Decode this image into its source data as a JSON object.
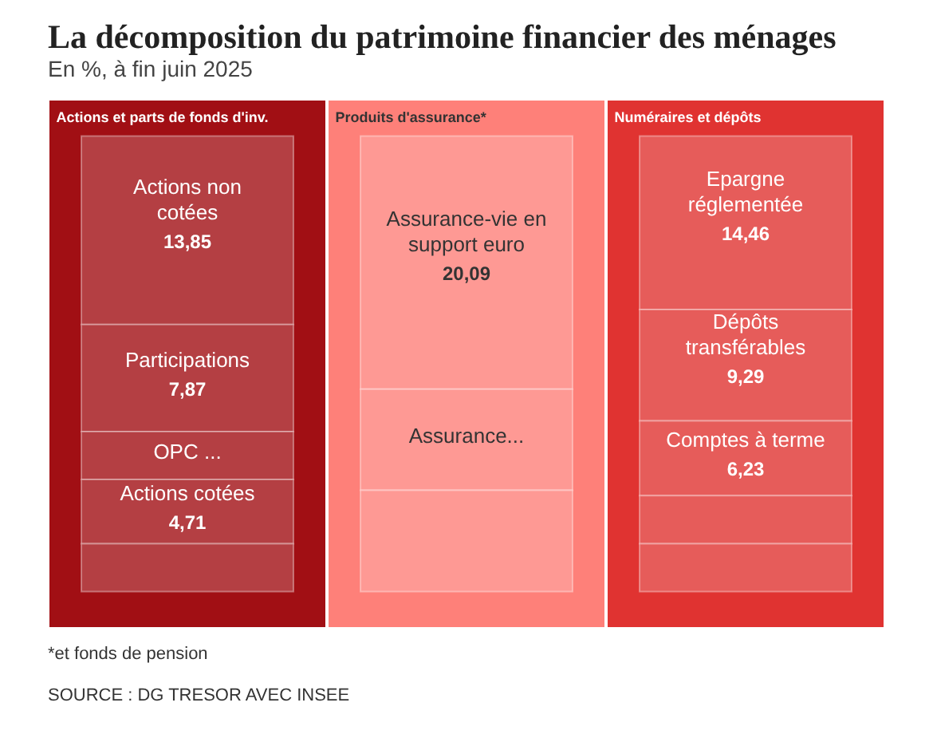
{
  "chart_data": {
    "type": "other",
    "title": "La décomposition du patrimoine financier des ménages",
    "subtitle": "En %, à fin juin 2025",
    "categories": [
      "Actions non cotées",
      "Participations",
      "OPC ...",
      "Actions cotées",
      null,
      "Assurance-vie en support euro",
      "Assurance...",
      null,
      "Epargne réglementée",
      "Dépôts transférables",
      "Comptes à terme",
      null,
      null
    ],
    "series": [
      {
        "name": "Actions et parts de fonds d'inv.",
        "color": "#b43f43",
        "values": [
          13.85,
          7.87,
          null,
          4.71,
          null,
          null,
          null,
          null,
          null,
          null,
          null,
          null,
          null
        ],
        "value_labels": [
          "13,85",
          "7,87",
          null,
          "4,71",
          null,
          null,
          null,
          null,
          null,
          null,
          null,
          null,
          null
        ]
      },
      {
        "name": "Produits d'assurance*",
        "color": "#fe9994",
        "values": [
          null,
          null,
          null,
          null,
          null,
          20.09,
          null,
          null,
          null,
          null,
          null,
          null,
          null
        ],
        "value_labels": [
          null,
          null,
          null,
          null,
          null,
          "20,09",
          null,
          null,
          null,
          null,
          null,
          null,
          null
        ]
      },
      {
        "name": "Numéraires et dépôts",
        "color": "#e65c5a",
        "values": [
          null,
          null,
          null,
          null,
          null,
          null,
          null,
          null,
          14.46,
          9.29,
          6.23,
          null,
          null
        ],
        "value_labels": [
          null,
          null,
          null,
          null,
          null,
          null,
          null,
          null,
          "14,46",
          "9,29",
          "6,23",
          null,
          null
        ]
      }
    ],
    "annotations": [
      "*et fonds de pension",
      "SOURCE : DG TRESOR AVEC INSEE"
    ]
  }
}
